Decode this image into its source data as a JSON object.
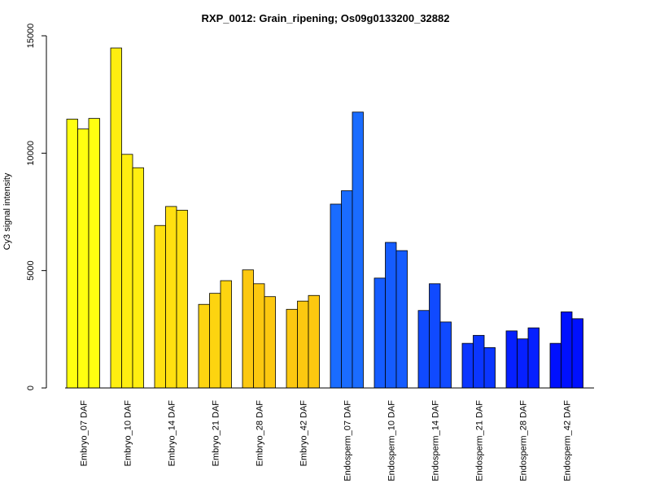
{
  "chart_data": {
    "type": "bar",
    "title": "RXP_0012: Grain_ripening; Os09g0133200_32882",
    "xlabel": "",
    "ylabel": "Cy3 signal intensity",
    "ylim": [
      0,
      15000
    ],
    "yticks": [
      0,
      5000,
      10000,
      15000
    ],
    "ytick_labels": [
      "0",
      "5000",
      "10000",
      "15000"
    ],
    "grid": false,
    "legend": "none",
    "replicates_per_group": 3,
    "categories": [
      "Embryo_07 DAF",
      "Embryo_10 DAF",
      "Embryo_14 DAF",
      "Embryo_21 DAF",
      "Embryo_28 DAF",
      "Embryo_42 DAF",
      "Endosperm_07 DAF",
      "Endosperm_10 DAF",
      "Endosperm_14 DAF",
      "Endosperm_21 DAF",
      "Endosperm_28 DAF",
      "Endosperm_42 DAF"
    ],
    "group_colors": [
      "#ffff10",
      "#ffee10",
      "#ffe010",
      "#fdd410",
      "#fcc810",
      "#fcc810",
      "#1a6cff",
      "#155cff",
      "#104aff",
      "#0b36ff",
      "#0620ff",
      "#0010ff"
    ],
    "values": [
      [
        11450,
        11030,
        11480
      ],
      [
        14480,
        9950,
        9380
      ],
      [
        6920,
        7730,
        7570
      ],
      [
        3560,
        4030,
        4570
      ],
      [
        5030,
        4440,
        3890
      ],
      [
        3350,
        3700,
        3940
      ],
      [
        7830,
        8400,
        11750
      ],
      [
        4680,
        6200,
        5850
      ],
      [
        3300,
        4440,
        2810
      ],
      [
        1900,
        2240,
        1720
      ],
      [
        2430,
        2090,
        2560
      ],
      [
        1900,
        3240,
        2950
      ]
    ]
  }
}
